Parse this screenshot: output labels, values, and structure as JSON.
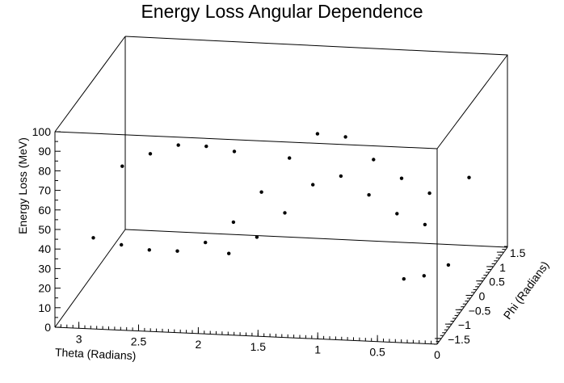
{
  "chart_data": {
    "type": "scatter",
    "title": "Energy Loss Angular Dependence",
    "xlabel": "Theta (Radians)",
    "ylabel": "Phi (Radians)",
    "zlabel": "Energy Loss (MeV)",
    "xlim": [
      3.2,
      0
    ],
    "ylim": [
      -1.7,
      1.7
    ],
    "zlim": [
      0,
      100
    ],
    "x_ticks": [
      "3",
      "2.5",
      "2",
      "1.5",
      "1",
      "0.5",
      "0"
    ],
    "x_tick_values": [
      3,
      2.5,
      2,
      1.5,
      1,
      0.5,
      0
    ],
    "y_ticks": [
      "1.5",
      "1",
      "0.5",
      "0",
      "−0.5",
      "−1",
      "−1.5"
    ],
    "y_tick_values": [
      1.5,
      1,
      0.5,
      0,
      -0.5,
      -1,
      -1.5
    ],
    "z_ticks": [
      "0",
      "10",
      "20",
      "30",
      "40",
      "50",
      "60",
      "70",
      "80",
      "90",
      "100"
    ],
    "z_tick_values": [
      0,
      10,
      20,
      30,
      40,
      50,
      60,
      70,
      80,
      90,
      100
    ],
    "grid": false,
    "legend": "none",
    "marker_color": "#000000",
    "points": [
      {
        "x": 3.0,
        "y": -1.0,
        "z": 36
      },
      {
        "x": 2.8,
        "y": -0.8,
        "z": 30
      },
      {
        "x": 2.6,
        "y": -0.6,
        "z": 25
      },
      {
        "x": 2.4,
        "y": -0.4,
        "z": 22
      },
      {
        "x": 2.2,
        "y": -0.2,
        "z": 24
      },
      {
        "x": 2.0,
        "y": 0.0,
        "z": 32
      },
      {
        "x": 1.8,
        "y": 0.2,
        "z": 45
      },
      {
        "x": 1.6,
        "y": 0.4,
        "z": 60
      },
      {
        "x": 1.4,
        "y": 0.6,
        "z": 70
      },
      {
        "x": 1.2,
        "y": 0.8,
        "z": 66
      },
      {
        "x": 1.0,
        "y": 1.0,
        "z": 52
      },
      {
        "x": 0.8,
        "y": 1.2,
        "z": 40
      },
      {
        "x": 0.6,
        "y": 1.4,
        "z": 30
      },
      {
        "x": 3.0,
        "y": 0.4,
        "z": 52
      },
      {
        "x": 2.8,
        "y": 0.6,
        "z": 56
      },
      {
        "x": 2.6,
        "y": 0.8,
        "z": 58
      },
      {
        "x": 2.4,
        "y": 1.0,
        "z": 55
      },
      {
        "x": 2.2,
        "y": 1.2,
        "z": 50
      },
      {
        "x": 1.9,
        "y": -0.8,
        "z": 28
      },
      {
        "x": 1.7,
        "y": -0.6,
        "z": 34
      },
      {
        "x": 1.5,
        "y": -0.4,
        "z": 44
      },
      {
        "x": 1.3,
        "y": -0.2,
        "z": 56
      },
      {
        "x": 1.1,
        "y": 0.0,
        "z": 58
      },
      {
        "x": 0.9,
        "y": 0.2,
        "z": 46
      },
      {
        "x": 0.7,
        "y": 0.4,
        "z": 34
      },
      {
        "x": 0.5,
        "y": 0.6,
        "z": 26
      },
      {
        "x": 0.4,
        "y": -1.0,
        "z": 22
      },
      {
        "x": 0.3,
        "y": -0.6,
        "z": 18
      },
      {
        "x": 0.2,
        "y": 0.0,
        "z": 15
      },
      {
        "x": 0.2,
        "y": 1.0,
        "z": 45
      }
    ]
  }
}
